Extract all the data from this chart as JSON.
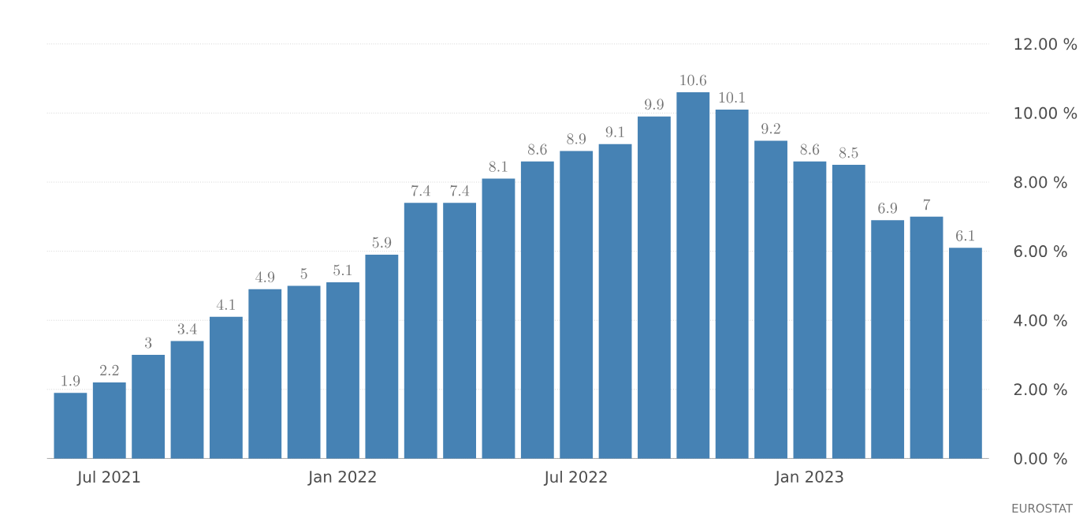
{
  "chart_data": {
    "type": "bar",
    "categories": [
      null,
      "Jul 2021",
      null,
      null,
      null,
      null,
      null,
      "Jan 2022",
      null,
      null,
      null,
      null,
      null,
      "Jul 2022",
      null,
      null,
      null,
      null,
      null,
      "Jan 2023",
      null,
      null,
      null,
      null
    ],
    "values": [
      1.9,
      2.2,
      3,
      3.4,
      4.1,
      4.9,
      5,
      5.1,
      5.9,
      7.4,
      7.4,
      8.1,
      8.6,
      8.9,
      9.1,
      9.9,
      10.6,
      10.1,
      9.2,
      8.6,
      8.5,
      6.9,
      7,
      6.1
    ],
    "color": "#4682b4",
    "ylim": [
      0,
      12
    ],
    "yticks": [
      {
        "value": 0,
        "label": "0.00 %"
      },
      {
        "value": 2,
        "label": "2.00 %"
      },
      {
        "value": 4,
        "label": "4.00 %"
      },
      {
        "value": 6,
        "label": "6.00 %"
      },
      {
        "value": 8,
        "label": "8.00 %"
      },
      {
        "value": 10,
        "label": "10.00 %"
      },
      {
        "value": 12,
        "label": "12.00 %"
      }
    ],
    "grid": "y",
    "data_labels": true,
    "annotations": [
      "EUROSTAT"
    ]
  }
}
